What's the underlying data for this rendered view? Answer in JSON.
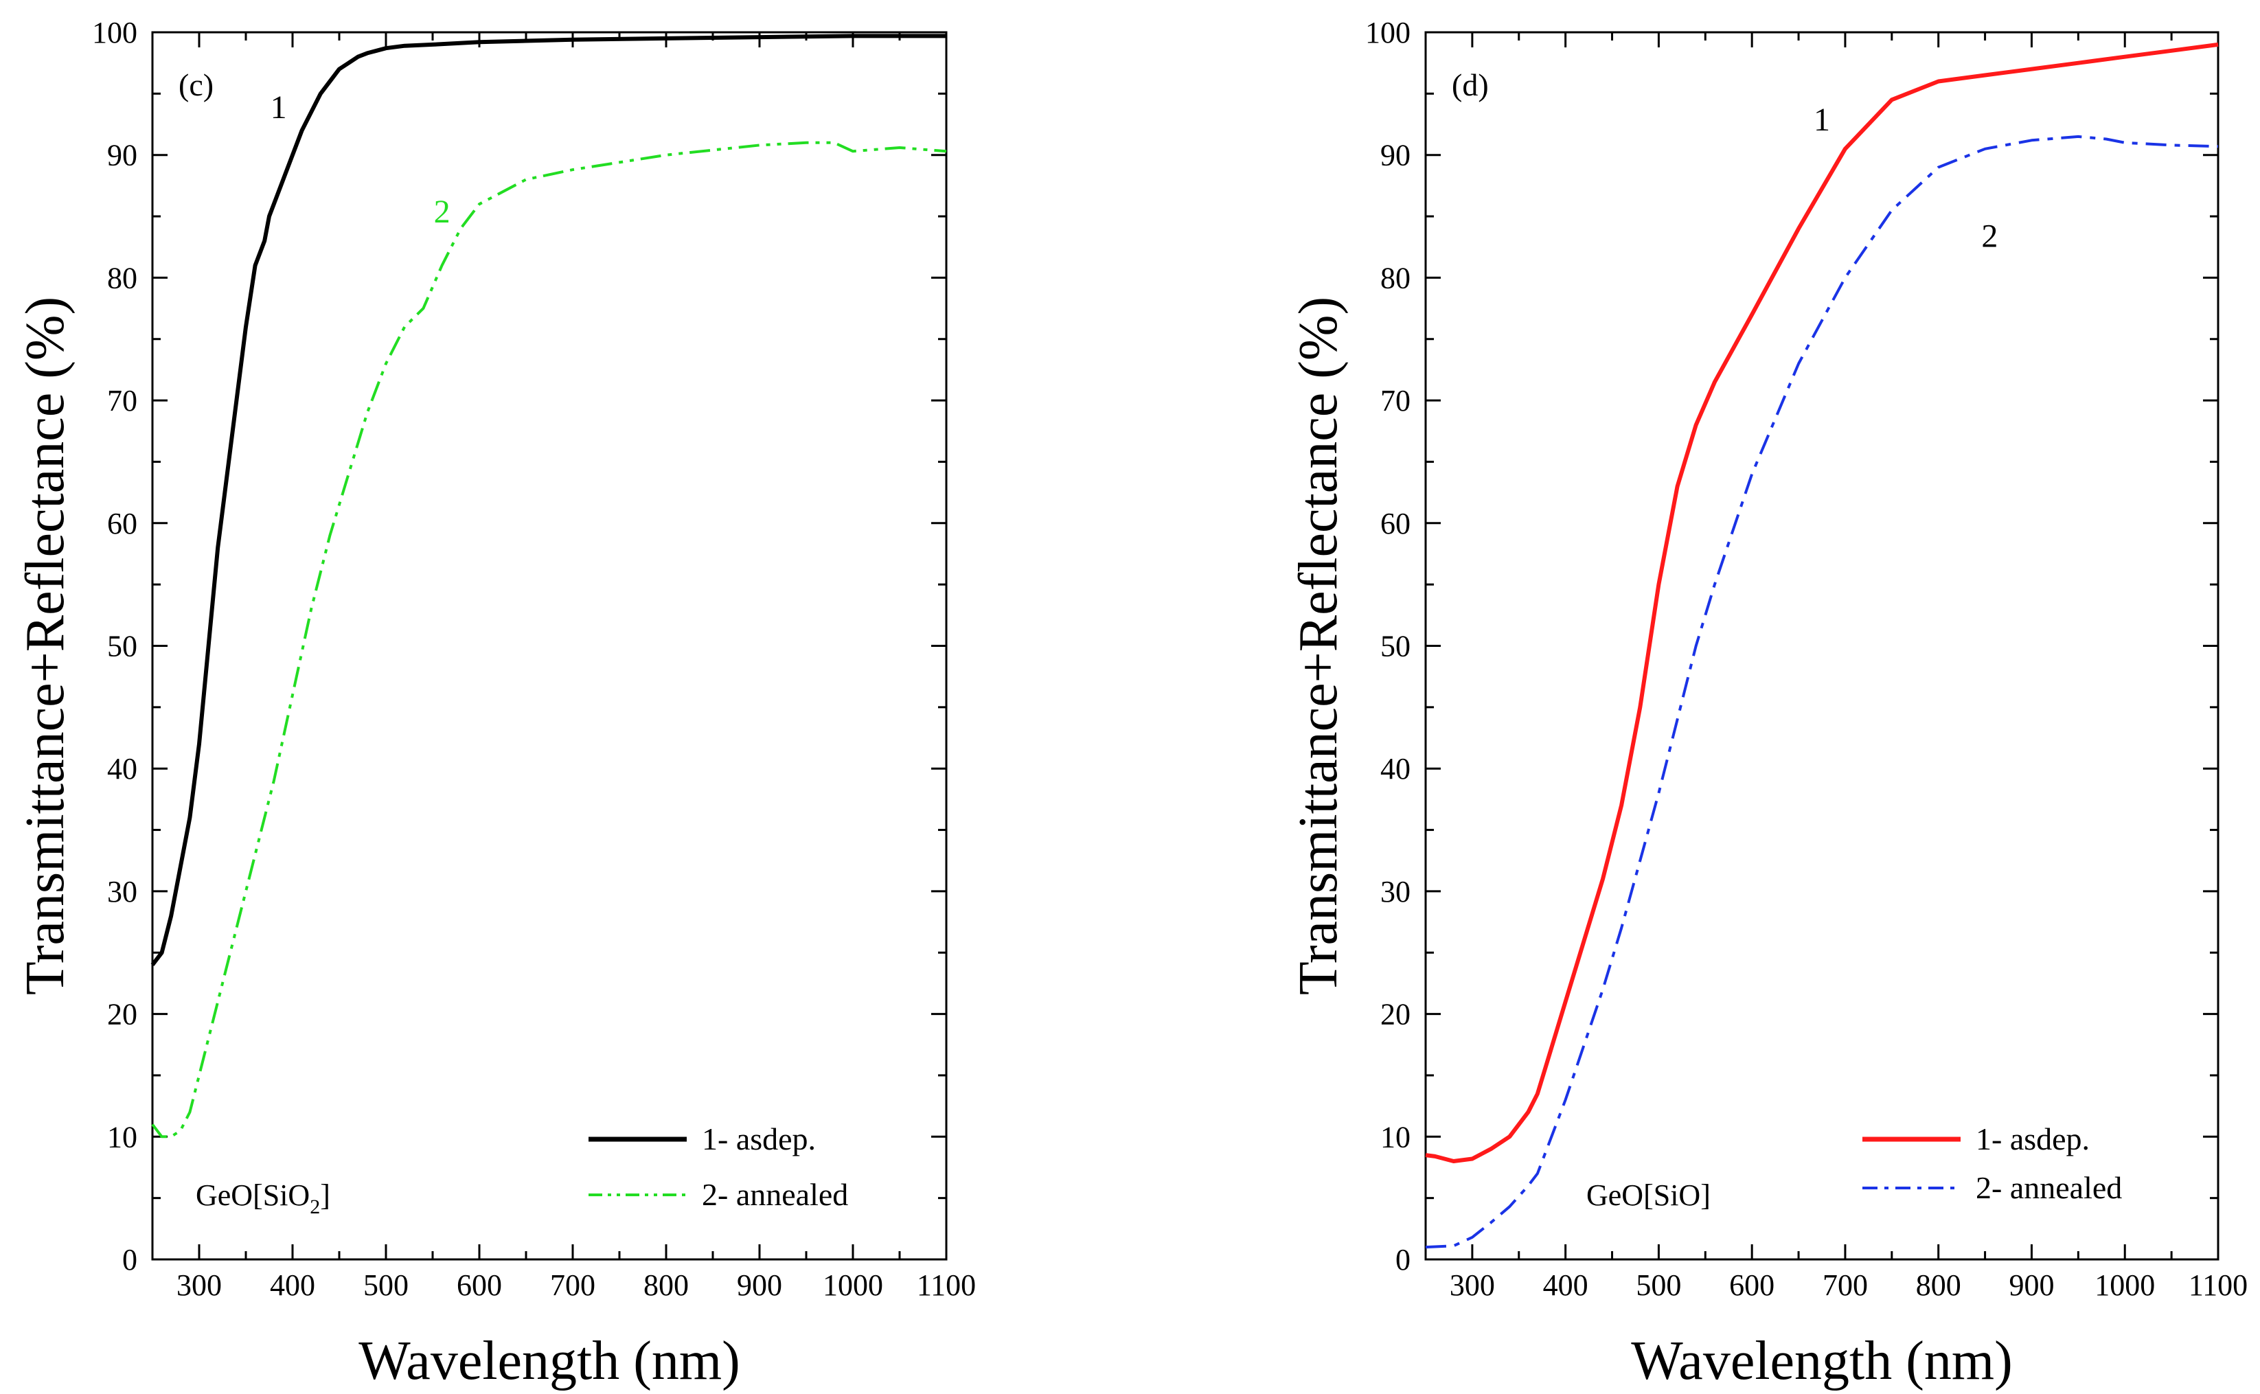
{
  "chart_data": [
    {
      "type": "line",
      "panel_label": "(c)",
      "xlabel": "Wavelength (nm)",
      "ylabel": "Transmittance+Reflectance (%)",
      "xlim": [
        250,
        1100
      ],
      "ylim": [
        0,
        100
      ],
      "x_ticks": [
        300,
        400,
        500,
        600,
        700,
        800,
        900,
        1000,
        1100
      ],
      "y_ticks": [
        0,
        10,
        20,
        30,
        40,
        50,
        60,
        70,
        80,
        90,
        100
      ],
      "sample_label": {
        "base": "GeO[SiO",
        "sub": "2",
        "tail": "]"
      },
      "legend": {
        "position": "bottom-right"
      },
      "curve_labels": [
        {
          "text": "1",
          "x": 385,
          "y": 93,
          "color": "#000000"
        },
        {
          "text": "2",
          "x": 560,
          "y": 84.5,
          "color": "#22dd22"
        }
      ],
      "series": [
        {
          "name": "1- asdep.",
          "color": "#000000",
          "dash": "solid",
          "x": [
            250,
            260,
            270,
            280,
            290,
            300,
            310,
            320,
            330,
            340,
            350,
            360,
            370,
            375,
            380,
            390,
            400,
            410,
            420,
            430,
            440,
            450,
            460,
            470,
            480,
            490,
            500,
            520,
            550,
            600,
            650,
            700,
            800,
            900,
            1000,
            1100
          ],
          "y": [
            24,
            25,
            28,
            32,
            36,
            42,
            50,
            58,
            64,
            70,
            76,
            81,
            83,
            85,
            86,
            88,
            90,
            92,
            93.5,
            95,
            96,
            97,
            97.5,
            98,
            98.3,
            98.5,
            98.7,
            98.9,
            99,
            99.2,
            99.3,
            99.4,
            99.5,
            99.6,
            99.7,
            99.7
          ]
        },
        {
          "name": "2- annealed",
          "color": "#22dd22",
          "dash": "dashdotdot",
          "x": [
            250,
            260,
            270,
            280,
            290,
            300,
            310,
            320,
            330,
            340,
            350,
            360,
            370,
            380,
            400,
            420,
            440,
            460,
            480,
            500,
            520,
            540,
            560,
            580,
            600,
            650,
            700,
            800,
            900,
            950,
            980,
            1000,
            1050,
            1100
          ],
          "y": [
            11,
            10,
            10,
            10.5,
            12,
            15,
            18,
            21,
            24,
            27,
            30,
            33,
            36,
            39,
            46,
            53,
            59,
            64,
            69,
            73,
            76,
            77.5,
            81,
            84,
            86,
            88,
            88.8,
            90,
            90.8,
            91,
            91,
            90.3,
            90.6,
            90.3
          ]
        }
      ]
    },
    {
      "type": "line",
      "panel_label": "(d)",
      "xlabel": "Wavelength (nm)",
      "ylabel": "Transmittance+Reflectance (%)",
      "xlim": [
        250,
        1100
      ],
      "ylim": [
        0,
        100
      ],
      "x_ticks": [
        300,
        400,
        500,
        600,
        700,
        800,
        900,
        1000,
        1100
      ],
      "y_ticks": [
        0,
        10,
        20,
        30,
        40,
        50,
        60,
        70,
        80,
        90,
        100
      ],
      "sample_label": {
        "base": "GeO[SiO]",
        "sub": "",
        "tail": ""
      },
      "legend": {
        "position": "bottom-right"
      },
      "curve_labels": [
        {
          "text": "1",
          "x": 675,
          "y": 92,
          "color": "#000000"
        },
        {
          "text": "2",
          "x": 855,
          "y": 82.5,
          "color": "#000000"
        }
      ],
      "series": [
        {
          "name": "1- asdep.",
          "color": "#ff1a1a",
          "dash": "solid",
          "x": [
            250,
            260,
            280,
            300,
            320,
            340,
            360,
            370,
            380,
            400,
            420,
            440,
            460,
            480,
            500,
            520,
            540,
            560,
            600,
            650,
            700,
            750,
            800,
            850,
            900,
            950,
            1000,
            1050,
            1100
          ],
          "y": [
            8.5,
            8.4,
            8.0,
            8.2,
            9.0,
            10.0,
            12.0,
            13.5,
            16.0,
            21.0,
            26.0,
            31.0,
            37.0,
            45.0,
            55.0,
            63.0,
            68.0,
            71.5,
            77.0,
            84.0,
            90.5,
            94.5,
            96.0,
            96.5,
            97.0,
            97.5,
            98.0,
            98.5,
            99.0
          ]
        },
        {
          "name": "2- annealed",
          "color": "#1a33e6",
          "dash": "dashdot",
          "x": [
            250,
            280,
            300,
            320,
            340,
            360,
            370,
            380,
            400,
            420,
            440,
            460,
            480,
            500,
            520,
            540,
            560,
            600,
            650,
            700,
            750,
            800,
            850,
            900,
            950,
            980,
            1000,
            1050,
            1100
          ],
          "y": [
            1.0,
            1.1,
            1.8,
            3.0,
            4.3,
            6.0,
            7.0,
            9.0,
            13.0,
            17.5,
            22.0,
            27.0,
            32.5,
            38.0,
            44.0,
            50.0,
            55.0,
            64.0,
            73.0,
            80.0,
            85.5,
            89.0,
            90.5,
            91.2,
            91.5,
            91.3,
            91.0,
            90.8,
            90.7
          ]
        }
      ]
    }
  ]
}
